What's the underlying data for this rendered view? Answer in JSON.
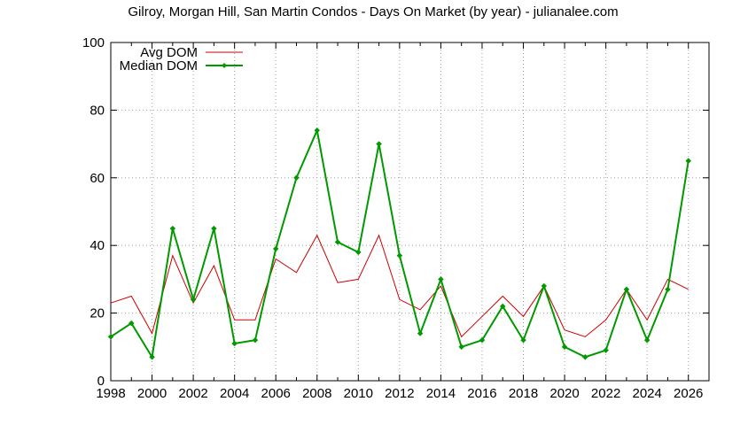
{
  "chart_data": {
    "type": "line",
    "title": "Gilroy, Morgan Hill, San Martin Condos - Days On Market (by year) - julianalee.com",
    "xlabel": "",
    "ylabel": "",
    "xlim": [
      1998,
      2027
    ],
    "ylim": [
      0,
      100
    ],
    "x_ticks": [
      "1998",
      "2000",
      "2002",
      "2004",
      "2006",
      "2008",
      "2010",
      "2012",
      "2014",
      "2016",
      "2018",
      "2020",
      "2022",
      "2024",
      "2026"
    ],
    "y_ticks": [
      "0",
      "20",
      "40",
      "60",
      "80",
      "100"
    ],
    "grid": true,
    "legend_position": "top-left",
    "x": [
      1998,
      1999,
      2000,
      2001,
      2002,
      2003,
      2004,
      2005,
      2006,
      2007,
      2008,
      2009,
      2010,
      2011,
      2012,
      2013,
      2014,
      2015,
      2016,
      2017,
      2018,
      2019,
      2020,
      2021,
      2022,
      2023,
      2024,
      2025,
      2026
    ],
    "series": [
      {
        "name": "Avg DOM",
        "color": "#cc0000",
        "values": [
          23,
          25,
          14,
          37,
          23,
          34,
          18,
          18,
          36,
          32,
          43,
          29,
          30,
          43,
          24,
          21,
          28,
          13,
          19,
          25,
          19,
          28,
          15,
          13,
          18,
          27,
          18,
          30,
          27
        ]
      },
      {
        "name": "Median DOM",
        "color": "#009900",
        "values": [
          13,
          17,
          7,
          45,
          24,
          45,
          11,
          12,
          39,
          60,
          74,
          41,
          38,
          70,
          37,
          14,
          30,
          10,
          12,
          22,
          12,
          28,
          10,
          7,
          9,
          27,
          12,
          27,
          65
        ]
      }
    ]
  }
}
